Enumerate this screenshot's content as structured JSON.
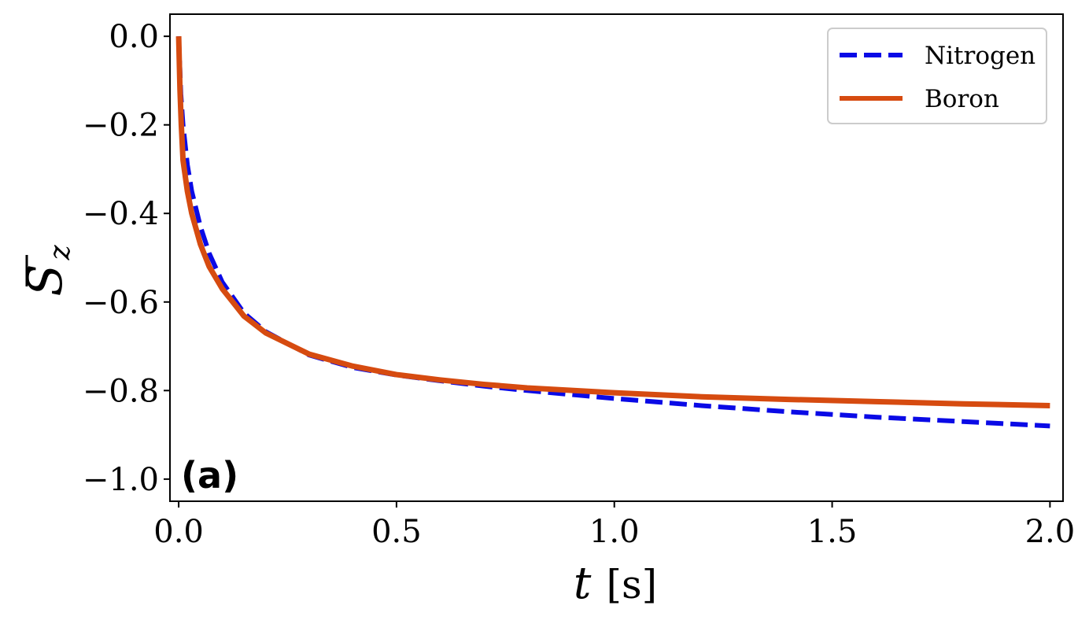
{
  "chart_data": {
    "type": "line",
    "xlabel": "t [s]",
    "xlabel_var": "t",
    "xlabel_unit": "[s]",
    "ylabel_main": "S",
    "ylabel_sub": "z",
    "xlim": [
      -0.02,
      2.03
    ],
    "ylim": [
      -1.05,
      0.05
    ],
    "xticks": [
      0.0,
      0.5,
      1.0,
      1.5,
      2.0
    ],
    "xtick_labels": [
      "0.0",
      "0.5",
      "1.0",
      "1.5",
      "2.0"
    ],
    "yticks": [
      0.0,
      -0.2,
      -0.4,
      -0.6,
      -0.8,
      -1.0
    ],
    "ytick_labels": [
      "0.0",
      "−0.2",
      "−0.4",
      "−0.6",
      "−0.8",
      "−1.0"
    ],
    "grid": false,
    "legend_position": "top-right",
    "annotation": "(a)",
    "series": [
      {
        "name": "Nitrogen",
        "color": "#0a0ae6",
        "dash": "dashed",
        "x": [
          0.0,
          0.005,
          0.01,
          0.02,
          0.03,
          0.05,
          0.07,
          0.1,
          0.15,
          0.2,
          0.3,
          0.4,
          0.5,
          0.6,
          0.7,
          0.8,
          1.0,
          1.2,
          1.4,
          1.6,
          1.8,
          2.0
        ],
        "y": [
          0.0,
          -0.13,
          -0.2,
          -0.29,
          -0.35,
          -0.43,
          -0.49,
          -0.555,
          -0.625,
          -0.667,
          -0.72,
          -0.748,
          -0.765,
          -0.778,
          -0.79,
          -0.8,
          -0.818,
          -0.834,
          -0.848,
          -0.86,
          -0.87,
          -0.88
        ]
      },
      {
        "name": "Boron",
        "color": "#d64b10",
        "dash": "solid",
        "x": [
          0.0,
          0.003,
          0.006,
          0.01,
          0.02,
          0.03,
          0.05,
          0.07,
          0.1,
          0.15,
          0.2,
          0.3,
          0.4,
          0.5,
          0.6,
          0.7,
          0.8,
          1.0,
          1.2,
          1.4,
          1.6,
          1.8,
          2.0
        ],
        "y": [
          0.0,
          -0.12,
          -0.2,
          -0.28,
          -0.35,
          -0.4,
          -0.47,
          -0.52,
          -0.57,
          -0.632,
          -0.67,
          -0.718,
          -0.745,
          -0.764,
          -0.776,
          -0.786,
          -0.794,
          -0.805,
          -0.814,
          -0.82,
          -0.825,
          -0.83,
          -0.834
        ]
      }
    ]
  }
}
